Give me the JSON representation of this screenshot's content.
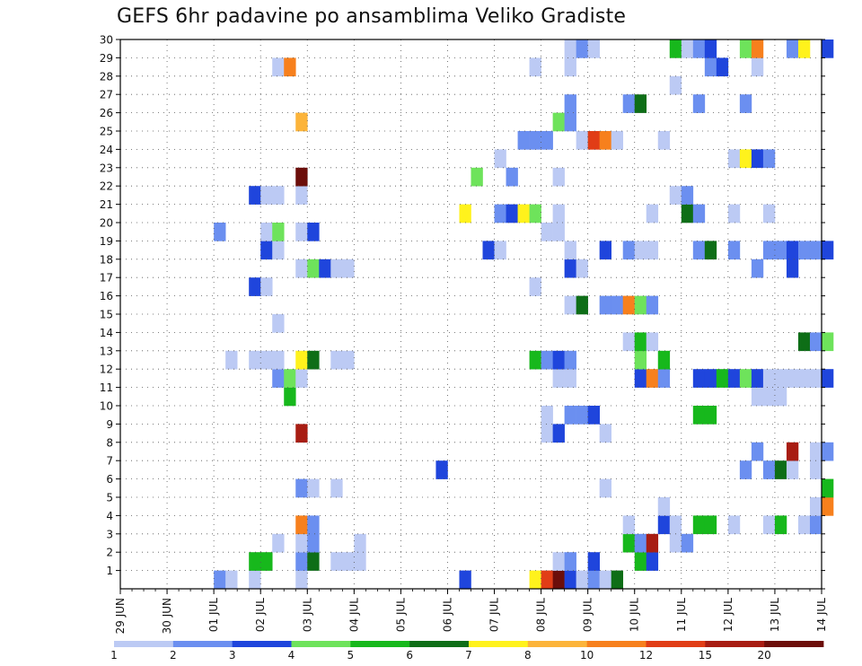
{
  "chart_data": {
    "type": "heatmap",
    "title": "GEFS 6hr padavine po ansamblima Veliko Gradiste",
    "x_tick_labels": [
      "29 JUN",
      "30 JUN",
      "01 JUL",
      "02 JUL",
      "03 JUL",
      "04 JUL",
      "05 JUL",
      "06 JUL",
      "07 JUL",
      "08 JUL",
      "09 JUL",
      "10 JUL",
      "11 JUL",
      "12 JUL",
      "13 JUL",
      "14 JUL"
    ],
    "x_range_hours": [
      0,
      360
    ],
    "x_step_hours": 6,
    "y_tick_labels": [
      "1",
      "2",
      "3",
      "4",
      "5",
      "6",
      "7",
      "8",
      "9",
      "10",
      "11",
      "12",
      "13",
      "14",
      "15",
      "16",
      "17",
      "18",
      "19",
      "20",
      "21",
      "22",
      "23",
      "24",
      "25",
      "26",
      "27",
      "28",
      "29",
      "30"
    ],
    "y_range_members": [
      0,
      30
    ],
    "grid": true,
    "legend": {
      "placement": "bottom",
      "colors": [
        "#bccaf4",
        "#6b8ff0",
        "#1f45dc",
        "#6ee35b",
        "#17b81c",
        "#0e6e17",
        "#fff21c",
        "#fcb43a",
        "#f7801d",
        "#e13d16",
        "#a81d13",
        "#6c0e0a"
      ],
      "labels": [
        "1",
        "2",
        "3",
        "4",
        "5",
        "6",
        "7",
        "8",
        "10",
        "12",
        "15",
        "20"
      ]
    },
    "bins": [
      {
        "level": 1,
        "min": 1,
        "max": 2
      },
      {
        "level": 2,
        "min": 2,
        "max": 3
      },
      {
        "level": 3,
        "min": 3,
        "max": 4
      },
      {
        "level": 4,
        "min": 4,
        "max": 5
      },
      {
        "level": 5,
        "min": 5,
        "max": 6
      },
      {
        "level": 6,
        "min": 6,
        "max": 7
      },
      {
        "level": 7,
        "min": 7,
        "max": 8
      },
      {
        "level": 8,
        "min": 8,
        "max": 10
      },
      {
        "level": 9,
        "min": 10,
        "max": 12
      },
      {
        "level": 10,
        "min": 12,
        "max": 15
      },
      {
        "level": 11,
        "min": 15,
        "max": 20
      },
      {
        "level": 12,
        "min": 20,
        "max": null
      }
    ],
    "cells_note": "each cell = [hour_start, ensemble_member, color_level]",
    "cells": [
      [
        48,
        0,
        2
      ],
      [
        54,
        0,
        1
      ],
      [
        66,
        0,
        1
      ],
      [
        90,
        0,
        1
      ],
      [
        174,
        0,
        3
      ],
      [
        210,
        0,
        7
      ],
      [
        216,
        0,
        10
      ],
      [
        222,
        0,
        12
      ],
      [
        228,
        0,
        3
      ],
      [
        234,
        0,
        1
      ],
      [
        240,
        0,
        2
      ],
      [
        246,
        0,
        1
      ],
      [
        252,
        0,
        6
      ],
      [
        66,
        1,
        5
      ],
      [
        72,
        1,
        5
      ],
      [
        90,
        1,
        2
      ],
      [
        96,
        1,
        6
      ],
      [
        108,
        1,
        1
      ],
      [
        114,
        1,
        1
      ],
      [
        120,
        1,
        1
      ],
      [
        222,
        1,
        1
      ],
      [
        228,
        1,
        2
      ],
      [
        240,
        1,
        3
      ],
      [
        264,
        1,
        5
      ],
      [
        270,
        1,
        3
      ],
      [
        78,
        2,
        1
      ],
      [
        90,
        2,
        1
      ],
      [
        96,
        2,
        2
      ],
      [
        120,
        2,
        1
      ],
      [
        258,
        2,
        5
      ],
      [
        264,
        2,
        2
      ],
      [
        270,
        2,
        11
      ],
      [
        282,
        2,
        1
      ],
      [
        288,
        2,
        2
      ],
      [
        90,
        3,
        9
      ],
      [
        96,
        3,
        2
      ],
      [
        258,
        3,
        1
      ],
      [
        276,
        3,
        3
      ],
      [
        282,
        3,
        1
      ],
      [
        294,
        3,
        5
      ],
      [
        300,
        3,
        5
      ],
      [
        312,
        3,
        1
      ],
      [
        330,
        3,
        1
      ],
      [
        336,
        3,
        5
      ],
      [
        348,
        3,
        1
      ],
      [
        354,
        3,
        2
      ],
      [
        276,
        4,
        1
      ],
      [
        354,
        4,
        1
      ],
      [
        360,
        4,
        9
      ],
      [
        90,
        5,
        2
      ],
      [
        96,
        5,
        1
      ],
      [
        108,
        5,
        1
      ],
      [
        246,
        5,
        1
      ],
      [
        360,
        5,
        5
      ],
      [
        162,
        6,
        3
      ],
      [
        318,
        6,
        2
      ],
      [
        330,
        6,
        2
      ],
      [
        336,
        6,
        6
      ],
      [
        342,
        6,
        1
      ],
      [
        354,
        6,
        1
      ],
      [
        324,
        7,
        2
      ],
      [
        342,
        7,
        11
      ],
      [
        354,
        7,
        1
      ],
      [
        360,
        7,
        2
      ],
      [
        90,
        8,
        11
      ],
      [
        216,
        8,
        1
      ],
      [
        222,
        8,
        3
      ],
      [
        246,
        8,
        1
      ],
      [
        216,
        9,
        1
      ],
      [
        228,
        9,
        2
      ],
      [
        234,
        9,
        2
      ],
      [
        240,
        9,
        3
      ],
      [
        294,
        9,
        5
      ],
      [
        300,
        9,
        5
      ],
      [
        324,
        10,
        1
      ],
      [
        330,
        10,
        1
      ],
      [
        336,
        10,
        1
      ],
      [
        84,
        10,
        5
      ],
      [
        78,
        11,
        2
      ],
      [
        84,
        11,
        4
      ],
      [
        90,
        11,
        1
      ],
      [
        222,
        11,
        1
      ],
      [
        228,
        11,
        1
      ],
      [
        264,
        11,
        3
      ],
      [
        270,
        11,
        9
      ],
      [
        276,
        11,
        2
      ],
      [
        294,
        11,
        3
      ],
      [
        300,
        11,
        3
      ],
      [
        306,
        11,
        5
      ],
      [
        312,
        11,
        3
      ],
      [
        318,
        11,
        4
      ],
      [
        324,
        11,
        3
      ],
      [
        330,
        11,
        1
      ],
      [
        336,
        11,
        1
      ],
      [
        342,
        11,
        1
      ],
      [
        348,
        11,
        1
      ],
      [
        354,
        11,
        1
      ],
      [
        360,
        11,
        3
      ],
      [
        54,
        12,
        1
      ],
      [
        66,
        12,
        1
      ],
      [
        72,
        12,
        1
      ],
      [
        78,
        12,
        1
      ],
      [
        90,
        12,
        7
      ],
      [
        96,
        12,
        6
      ],
      [
        108,
        12,
        1
      ],
      [
        114,
        12,
        1
      ],
      [
        210,
        12,
        5
      ],
      [
        216,
        12,
        2
      ],
      [
        222,
        12,
        3
      ],
      [
        228,
        12,
        2
      ],
      [
        264,
        12,
        4
      ],
      [
        276,
        12,
        5
      ],
      [
        258,
        13,
        1
      ],
      [
        264,
        13,
        5
      ],
      [
        270,
        13,
        1
      ],
      [
        348,
        13,
        6
      ],
      [
        354,
        13,
        2
      ],
      [
        360,
        13,
        4
      ],
      [
        78,
        14,
        1
      ],
      [
        228,
        15,
        1
      ],
      [
        234,
        15,
        6
      ],
      [
        246,
        15,
        2
      ],
      [
        252,
        15,
        2
      ],
      [
        258,
        15,
        9
      ],
      [
        264,
        15,
        4
      ],
      [
        270,
        15,
        2
      ],
      [
        66,
        16,
        3
      ],
      [
        72,
        16,
        1
      ],
      [
        210,
        16,
        1
      ],
      [
        90,
        17,
        1
      ],
      [
        96,
        17,
        4
      ],
      [
        102,
        17,
        3
      ],
      [
        108,
        17,
        1
      ],
      [
        114,
        17,
        1
      ],
      [
        228,
        17,
        3
      ],
      [
        234,
        17,
        1
      ],
      [
        324,
        17,
        2
      ],
      [
        342,
        17,
        3
      ],
      [
        72,
        18,
        3
      ],
      [
        78,
        18,
        1
      ],
      [
        186,
        18,
        3
      ],
      [
        192,
        18,
        1
      ],
      [
        228,
        18,
        1
      ],
      [
        246,
        18,
        3
      ],
      [
        258,
        18,
        2
      ],
      [
        264,
        18,
        1
      ],
      [
        270,
        18,
        1
      ],
      [
        294,
        18,
        2
      ],
      [
        300,
        18,
        6
      ],
      [
        312,
        18,
        2
      ],
      [
        330,
        18,
        2
      ],
      [
        336,
        18,
        2
      ],
      [
        342,
        18,
        3
      ],
      [
        348,
        18,
        2
      ],
      [
        354,
        18,
        2
      ],
      [
        360,
        18,
        3
      ],
      [
        48,
        19,
        2
      ],
      [
        72,
        19,
        1
      ],
      [
        78,
        19,
        4
      ],
      [
        90,
        19,
        1
      ],
      [
        96,
        19,
        3
      ],
      [
        216,
        19,
        1
      ],
      [
        222,
        19,
        1
      ],
      [
        174,
        20,
        7
      ],
      [
        192,
        20,
        2
      ],
      [
        198,
        20,
        3
      ],
      [
        204,
        20,
        7
      ],
      [
        210,
        20,
        4
      ],
      [
        222,
        20,
        1
      ],
      [
        270,
        20,
        1
      ],
      [
        288,
        20,
        6
      ],
      [
        294,
        20,
        2
      ],
      [
        312,
        20,
        1
      ],
      [
        330,
        20,
        1
      ],
      [
        66,
        21,
        3
      ],
      [
        72,
        21,
        1
      ],
      [
        78,
        21,
        1
      ],
      [
        90,
        21,
        1
      ],
      [
        282,
        21,
        1
      ],
      [
        288,
        21,
        2
      ],
      [
        90,
        22,
        12
      ],
      [
        180,
        22,
        4
      ],
      [
        198,
        22,
        2
      ],
      [
        222,
        22,
        1
      ],
      [
        192,
        23,
        1
      ],
      [
        312,
        23,
        1
      ],
      [
        318,
        23,
        7
      ],
      [
        324,
        23,
        3
      ],
      [
        330,
        23,
        2
      ],
      [
        204,
        24,
        2
      ],
      [
        210,
        24,
        2
      ],
      [
        216,
        24,
        2
      ],
      [
        234,
        24,
        1
      ],
      [
        240,
        24,
        10
      ],
      [
        246,
        24,
        9
      ],
      [
        252,
        24,
        1
      ],
      [
        276,
        24,
        1
      ],
      [
        90,
        25,
        8
      ],
      [
        222,
        25,
        4
      ],
      [
        228,
        25,
        2
      ],
      [
        228,
        26,
        2
      ],
      [
        258,
        26,
        2
      ],
      [
        264,
        26,
        6
      ],
      [
        294,
        26,
        2
      ],
      [
        318,
        26,
        2
      ],
      [
        282,
        27,
        1
      ],
      [
        78,
        28,
        1
      ],
      [
        84,
        28,
        9
      ],
      [
        210,
        28,
        1
      ],
      [
        228,
        28,
        1
      ],
      [
        300,
        28,
        2
      ],
      [
        306,
        28,
        3
      ],
      [
        324,
        28,
        1
      ],
      [
        228,
        29,
        1
      ],
      [
        234,
        29,
        2
      ],
      [
        240,
        29,
        1
      ],
      [
        282,
        29,
        5
      ],
      [
        288,
        29,
        1
      ],
      [
        294,
        29,
        2
      ],
      [
        300,
        29,
        3
      ],
      [
        318,
        29,
        4
      ],
      [
        324,
        29,
        9
      ],
      [
        342,
        29,
        2
      ],
      [
        348,
        29,
        7
      ],
      [
        360,
        29,
        3
      ]
    ]
  }
}
